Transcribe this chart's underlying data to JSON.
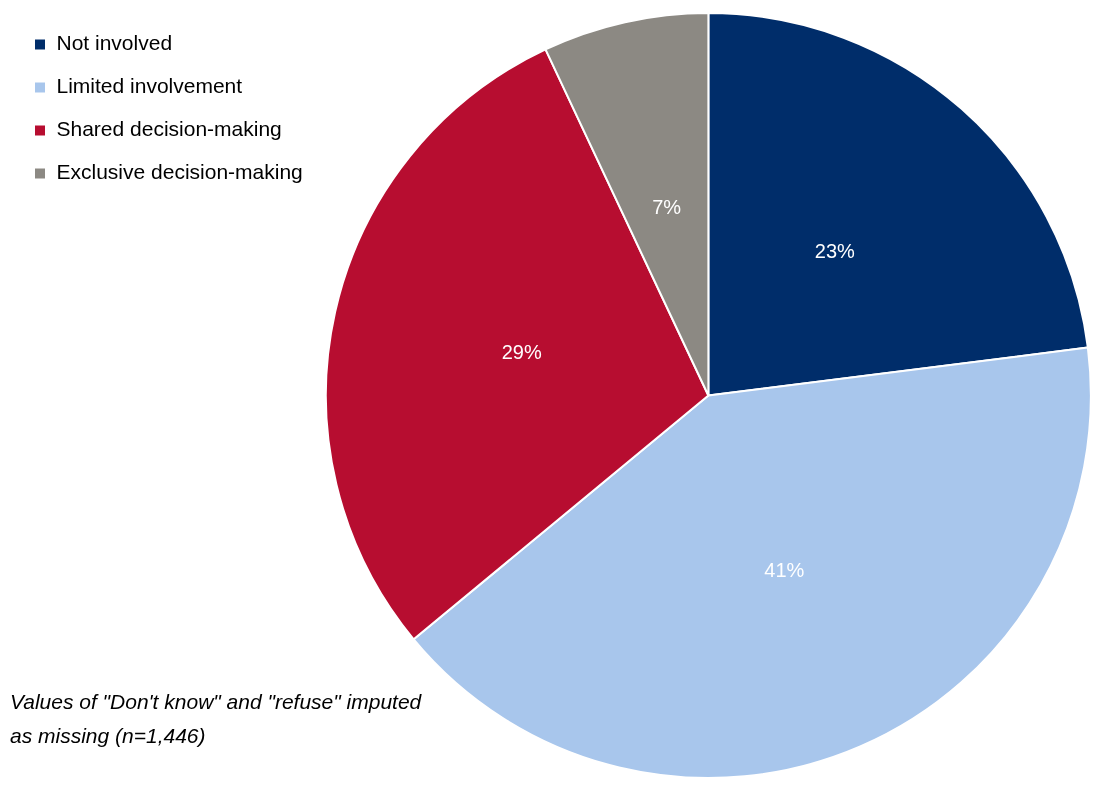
{
  "chart_data": {
    "type": "pie",
    "categories": [
      "Not involved",
      "Limited involvement",
      "Shared decision-making",
      "Exclusive decision-making"
    ],
    "values": [
      23,
      41,
      29,
      7
    ],
    "colors": [
      "#002d6a",
      "#a8c6ec",
      "#b70d30",
      "#8c8983"
    ],
    "value_labels": [
      "23%",
      "41%",
      "29%",
      "7%"
    ],
    "legend": "top left",
    "annotations": [
      "Values of \"Don't know\" and \"refuse\" imputed as missing (n=1,446)"
    ]
  }
}
